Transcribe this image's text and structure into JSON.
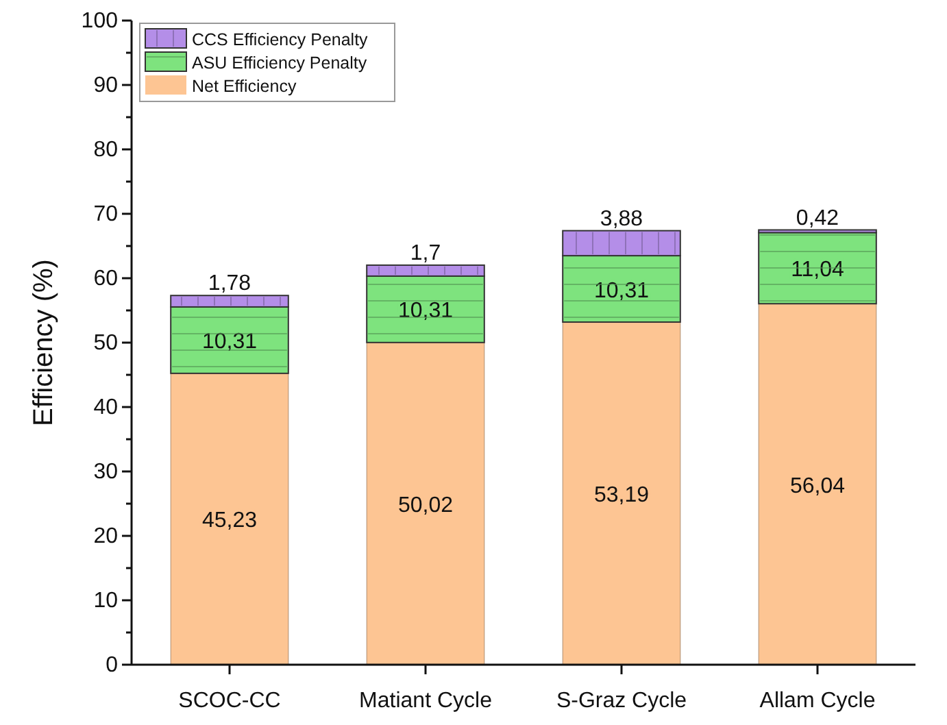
{
  "chart_data": {
    "type": "bar",
    "ylabel": "Efficiency (%)",
    "categories": [
      "SCOC-CC",
      "Matiant Cycle",
      "S-Graz Cycle",
      "Allam Cycle"
    ],
    "stacked": true,
    "series": [
      {
        "name": "Net Efficiency",
        "color": "#fdc593",
        "values": [
          45.23,
          50.02,
          53.19,
          56.04
        ],
        "value_labels": [
          "45,23",
          "50,02",
          "53,19",
          "56,04"
        ]
      },
      {
        "name": "ASU Efficiency Penalty",
        "color": "#7ee37e",
        "values": [
          10.31,
          10.31,
          10.31,
          11.04
        ],
        "value_labels": [
          "10,31",
          "10,31",
          "10,31",
          "11,04"
        ]
      },
      {
        "name": "CCS Efficiency Penalty",
        "color": "#b48ee8",
        "values": [
          1.78,
          1.7,
          3.88,
          0.42
        ],
        "value_labels": [
          "1,78",
          "1,7",
          "3,88",
          "0,42"
        ]
      }
    ],
    "ylim": [
      0,
      100
    ],
    "yticks": [
      0,
      10,
      20,
      30,
      40,
      50,
      60,
      70,
      80,
      90,
      100
    ],
    "legend": "top left",
    "grid": false
  }
}
